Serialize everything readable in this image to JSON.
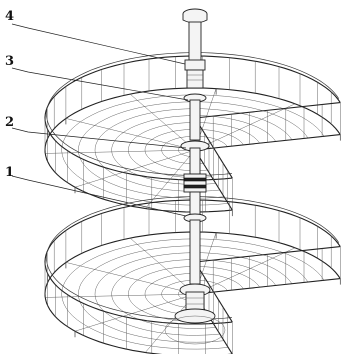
{
  "callouts": [
    {
      "id": "4",
      "label": "4"
    },
    {
      "id": "3",
      "label": "3"
    },
    {
      "id": "2",
      "label": "2"
    },
    {
      "id": "1",
      "label": "1"
    }
  ],
  "colors": {
    "line": "#222222",
    "background": "#ffffff"
  }
}
